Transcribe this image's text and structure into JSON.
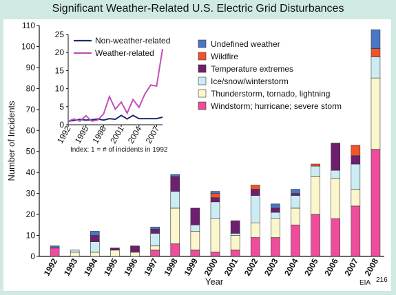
{
  "title": "Significant Weather-Related U.S. Electric Grid Disturbances",
  "source": "EIA",
  "source_sup": "216",
  "colors": {
    "Undefined weather": "#4a76c4",
    "Wildfire": "#f0552a",
    "Temperature extremes": "#6e1f6e",
    "Ice/snow/winterstorm": "#ccecf4",
    "Thunderstorm, tornado, lightning": "#fbf6cc",
    "Windstorm; hurricane; severe storm": "#ee4d9c",
    "Non-weather-related": "#1f2a6e",
    "Weather-related": "#c44dbb"
  },
  "chart_data": [
    {
      "type": "bar",
      "stacked": true,
      "xlabel": "Year",
      "ylabel": "Number of Incidents",
      "ylim": [
        0,
        110
      ],
      "yticks": [
        0,
        10,
        20,
        30,
        40,
        50,
        60,
        70,
        80,
        90,
        100,
        110
      ],
      "categories": [
        "1992",
        "1993",
        "1994",
        "1995",
        "1996",
        "1997",
        "1998",
        "1999",
        "2000",
        "2001",
        "2002",
        "2003",
        "2004",
        "2005",
        "2006",
        "2007",
        "2008"
      ],
      "legend": [
        "Undefined weather",
        "Wildfire",
        "Temperature extremes",
        "Ice/snow/winterstorm",
        "Thunderstorm, tornado, lightning",
        "Windstorm; hurricane; severe storm"
      ],
      "legend_position": "top-right",
      "series": [
        {
          "name": "Windstorm; hurricane; severe storm",
          "values": [
            4,
            0,
            0,
            0,
            0,
            3,
            6,
            3,
            2,
            3,
            9,
            9,
            15,
            20,
            18,
            24,
            51
          ]
        },
        {
          "name": "Thunderstorm, tornado, lightning",
          "values": [
            0,
            2,
            2,
            3,
            2,
            2,
            17,
            9,
            16,
            7,
            7,
            9,
            8,
            18,
            19,
            8,
            34
          ]
        },
        {
          "name": "Ice/snow/winterstorm",
          "values": [
            0,
            1,
            5,
            0,
            0,
            6,
            8,
            3,
            8,
            1,
            13,
            3,
            6,
            5,
            4,
            12,
            10
          ]
        },
        {
          "name": "Temperature extremes",
          "values": [
            0,
            0,
            3,
            1,
            3,
            2,
            7,
            8,
            2,
            6,
            3,
            2,
            1,
            0,
            13,
            4,
            0
          ]
        },
        {
          "name": "Wildfire",
          "values": [
            0,
            0,
            0,
            0,
            0,
            0,
            0,
            0,
            2,
            0,
            2,
            0,
            0,
            1,
            0,
            5,
            4
          ]
        },
        {
          "name": "Undefined weather",
          "values": [
            1,
            0,
            2,
            0,
            0,
            1,
            1,
            0,
            1,
            0,
            0,
            2,
            2,
            0,
            0,
            0,
            9
          ]
        }
      ]
    },
    {
      "type": "line",
      "note": "Index: 1 = # of incidents in 1992",
      "ylim": [
        0,
        25
      ],
      "yticks": [
        0,
        5,
        10,
        15,
        20,
        25
      ],
      "xticks": [
        "1992",
        "1995",
        "1998",
        "2001",
        "2004",
        "2007"
      ],
      "x": [
        1992,
        1993,
        1994,
        1995,
        1996,
        1997,
        1998,
        1999,
        2000,
        2001,
        2002,
        2003,
        2004,
        2005,
        2006,
        2007,
        2008
      ],
      "series": [
        {
          "name": "Non-weather-related",
          "values": [
            1,
            1.2,
            1.5,
            1.3,
            1.4,
            1.6,
            1.3,
            1.7,
            1.5,
            2.6,
            1.6,
            2.6,
            1.7,
            1.7,
            1.7,
            1.7,
            2.1
          ]
        },
        {
          "name": "Weather-related",
          "values": [
            1,
            1.6,
            1,
            2.5,
            1,
            1.3,
            3,
            7.8,
            4.3,
            6.3,
            3.2,
            7,
            4.8,
            8.5,
            11,
            10.7,
            21
          ]
        }
      ],
      "legend_position": "top-left"
    }
  ]
}
